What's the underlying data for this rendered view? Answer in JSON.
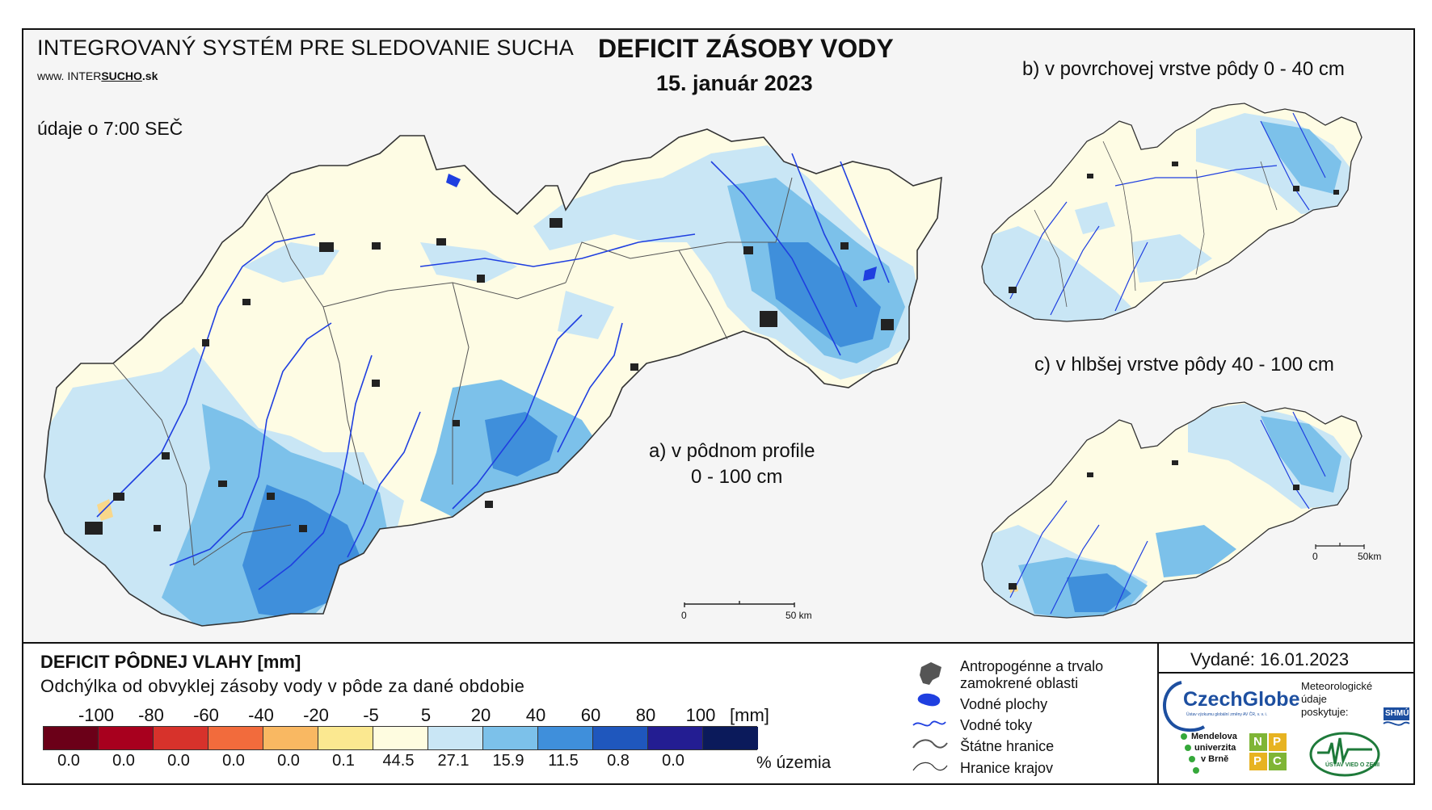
{
  "header": {
    "system_title": "INTEGROVANÝ SYSTÉM PRE SLEDOVANIE SUCHA",
    "web_prefix": "www.",
    "web_a": "INTER",
    "web_b": "SUCHO",
    "web_c": ".sk",
    "time_note": "údaje o 7:00 SEČ",
    "main_title": "DEFICIT ZÁSOBY VODY",
    "main_date": "15. január 2023"
  },
  "maps": {
    "a_label_line1": "a) v pôdnom profile",
    "a_label_line2": "0 - 100 cm",
    "b_label": "b) v povrchovej vrstve pôdy 0 - 40 cm",
    "c_label": "c) v hlbšej vrstve pôdy 40 - 100 cm",
    "scale_main_zero": "0",
    "scale_main_end": "50 km",
    "scale_small_zero": "0",
    "scale_small_end": "50km"
  },
  "legend": {
    "title": "DEFICIT PÔDNEJ VLAHY [mm]",
    "subtitle": "Odchýlka od obvyklej zásoby vody v pôde za dané obdobie",
    "ticks": [
      "-100",
      "-80",
      "-60",
      "-40",
      "-20",
      "-5",
      "5",
      "20",
      "40",
      "60",
      "80",
      "100"
    ],
    "unit": "[mm]",
    "colors": [
      "#6b0018",
      "#a8001e",
      "#d7322b",
      "#f26b3c",
      "#f9b862",
      "#fbe890",
      "#fefce0",
      "#c9e6f5",
      "#7cc1ea",
      "#3f8fdb",
      "#1f57bd",
      "#231d92",
      "#0b1a5b"
    ],
    "percentages": [
      "0.0",
      "0.0",
      "0.0",
      "0.0",
      "0.0",
      "0.1",
      "44.5",
      "27.1",
      "15.9",
      "11.5",
      "0.8",
      "0.0"
    ],
    "percent_label": "% územia"
  },
  "symbols": {
    "urban": "Antropogénne a trvalo zamokrené oblasti",
    "urban_line1": "Antropogénne a trvalo",
    "urban_line2": "zamokrené oblasti",
    "water_bodies": "Vodné plochy",
    "rivers": "Vodné toky",
    "state_border": "Štátne hranice",
    "region_border": "Hranice krajov"
  },
  "footer": {
    "issued": "Vydané: 16.01.2023",
    "czechglobe": "CzechGlobe",
    "czechglobe_sub": "Ústav výzkumu globální změny AV ČR, v. v. i.",
    "met_line1": "Meteorologické",
    "met_line2": "údaje",
    "met_line3": "poskytuje:",
    "shmu": "SHMÚ",
    "mendel_line1": "Mendelova",
    "mendel_line2": "univerzita",
    "mendel_line3": "v Brně",
    "nppc": [
      "N",
      "P",
      "P",
      "C"
    ],
    "uvz": "ÚSTAV VIED O ZEMI"
  }
}
